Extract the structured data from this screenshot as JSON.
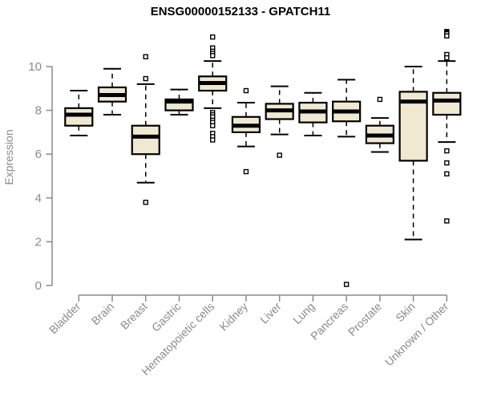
{
  "colors": {
    "background": "#ffffff",
    "axis": "#8a8a8a",
    "line": "#000000",
    "box_fill": "#f0e8d0",
    "outlier_fill": "#ffffff",
    "title": "#000000"
  },
  "chart_data": {
    "type": "boxplot",
    "title": "ENSG00000152133 - GPATCH11",
    "xlabel": "",
    "ylabel": "Expression",
    "ylim": [
      0,
      11.8
    ],
    "yticks": [
      0,
      2,
      4,
      6,
      8,
      10
    ],
    "grid": false,
    "legend": "none",
    "categories": [
      "Bladder",
      "Brain",
      "Breast",
      "Gastric",
      "Hematopoietic cells",
      "Kidney",
      "Liver",
      "Lung",
      "Pancreas",
      "Prostate",
      "Skin",
      "Unknown / Other"
    ],
    "boxes": [
      {
        "category": "Bladder",
        "whisker_low": 6.85,
        "q1": 7.3,
        "median": 7.8,
        "q3": 8.1,
        "whisker_high": 8.9,
        "outliers": []
      },
      {
        "category": "Brain",
        "whisker_low": 7.8,
        "q1": 8.4,
        "median": 8.7,
        "q3": 9.05,
        "whisker_high": 9.9,
        "outliers": []
      },
      {
        "category": "Breast",
        "whisker_low": 4.7,
        "q1": 6.0,
        "median": 6.8,
        "q3": 7.3,
        "whisker_high": 9.2,
        "outliers": [
          10.45,
          9.45,
          3.8
        ]
      },
      {
        "category": "Gastric",
        "whisker_low": 7.8,
        "q1": 8.0,
        "median": 8.4,
        "q3": 8.5,
        "whisker_high": 8.95,
        "outliers": []
      },
      {
        "category": "Hematopoietic cells",
        "whisker_low": 8.1,
        "q1": 8.9,
        "median": 9.25,
        "q3": 9.55,
        "whisker_high": 10.25,
        "outliers": [
          11.35,
          10.85,
          10.7,
          10.6,
          10.5,
          7.9,
          7.8,
          7.7,
          7.55,
          7.45,
          7.3,
          6.95,
          6.8,
          6.65
        ]
      },
      {
        "category": "Kidney",
        "whisker_low": 6.35,
        "q1": 7.0,
        "median": 7.3,
        "q3": 7.7,
        "whisker_high": 8.35,
        "outliers": [
          8.9,
          5.2
        ]
      },
      {
        "category": "Liver",
        "whisker_low": 6.9,
        "q1": 7.6,
        "median": 8.0,
        "q3": 8.3,
        "whisker_high": 9.1,
        "outliers": [
          5.95
        ]
      },
      {
        "category": "Lung",
        "whisker_low": 6.85,
        "q1": 7.45,
        "median": 7.95,
        "q3": 8.35,
        "whisker_high": 8.8,
        "outliers": []
      },
      {
        "category": "Pancreas",
        "whisker_low": 6.8,
        "q1": 7.5,
        "median": 7.95,
        "q3": 8.4,
        "whisker_high": 9.4,
        "outliers": [
          0.05
        ]
      },
      {
        "category": "Prostate",
        "whisker_low": 6.1,
        "q1": 6.5,
        "median": 6.85,
        "q3": 7.3,
        "whisker_high": 7.65,
        "outliers": [
          8.5
        ]
      },
      {
        "category": "Skin",
        "whisker_low": 2.1,
        "q1": 5.7,
        "median": 8.4,
        "q3": 8.85,
        "whisker_high": 10.0,
        "outliers": []
      },
      {
        "category": "Unknown / Other",
        "whisker_low": 6.55,
        "q1": 7.8,
        "median": 8.45,
        "q3": 8.8,
        "whisker_high": 10.25,
        "outliers": [
          11.6,
          11.55,
          11.5,
          11.4,
          10.55,
          10.4,
          6.15,
          5.6,
          5.1,
          2.95
        ]
      }
    ]
  }
}
